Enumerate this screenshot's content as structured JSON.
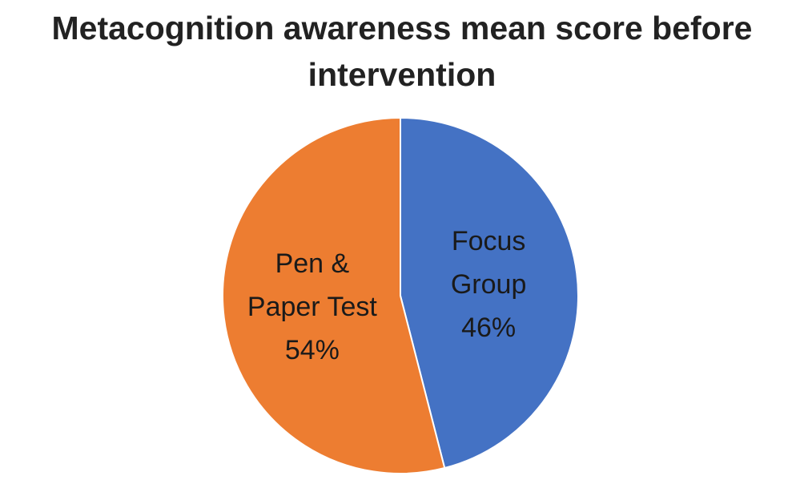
{
  "chart_data": {
    "type": "pie",
    "title": "Metacognition awareness mean score before intervention",
    "categories": [
      "Focus Group",
      "Pen & Paper Test"
    ],
    "values": [
      46,
      54
    ],
    "value_labels": [
      "46%",
      "54%"
    ],
    "colors": [
      "#4472c4",
      "#ed7d31"
    ]
  }
}
